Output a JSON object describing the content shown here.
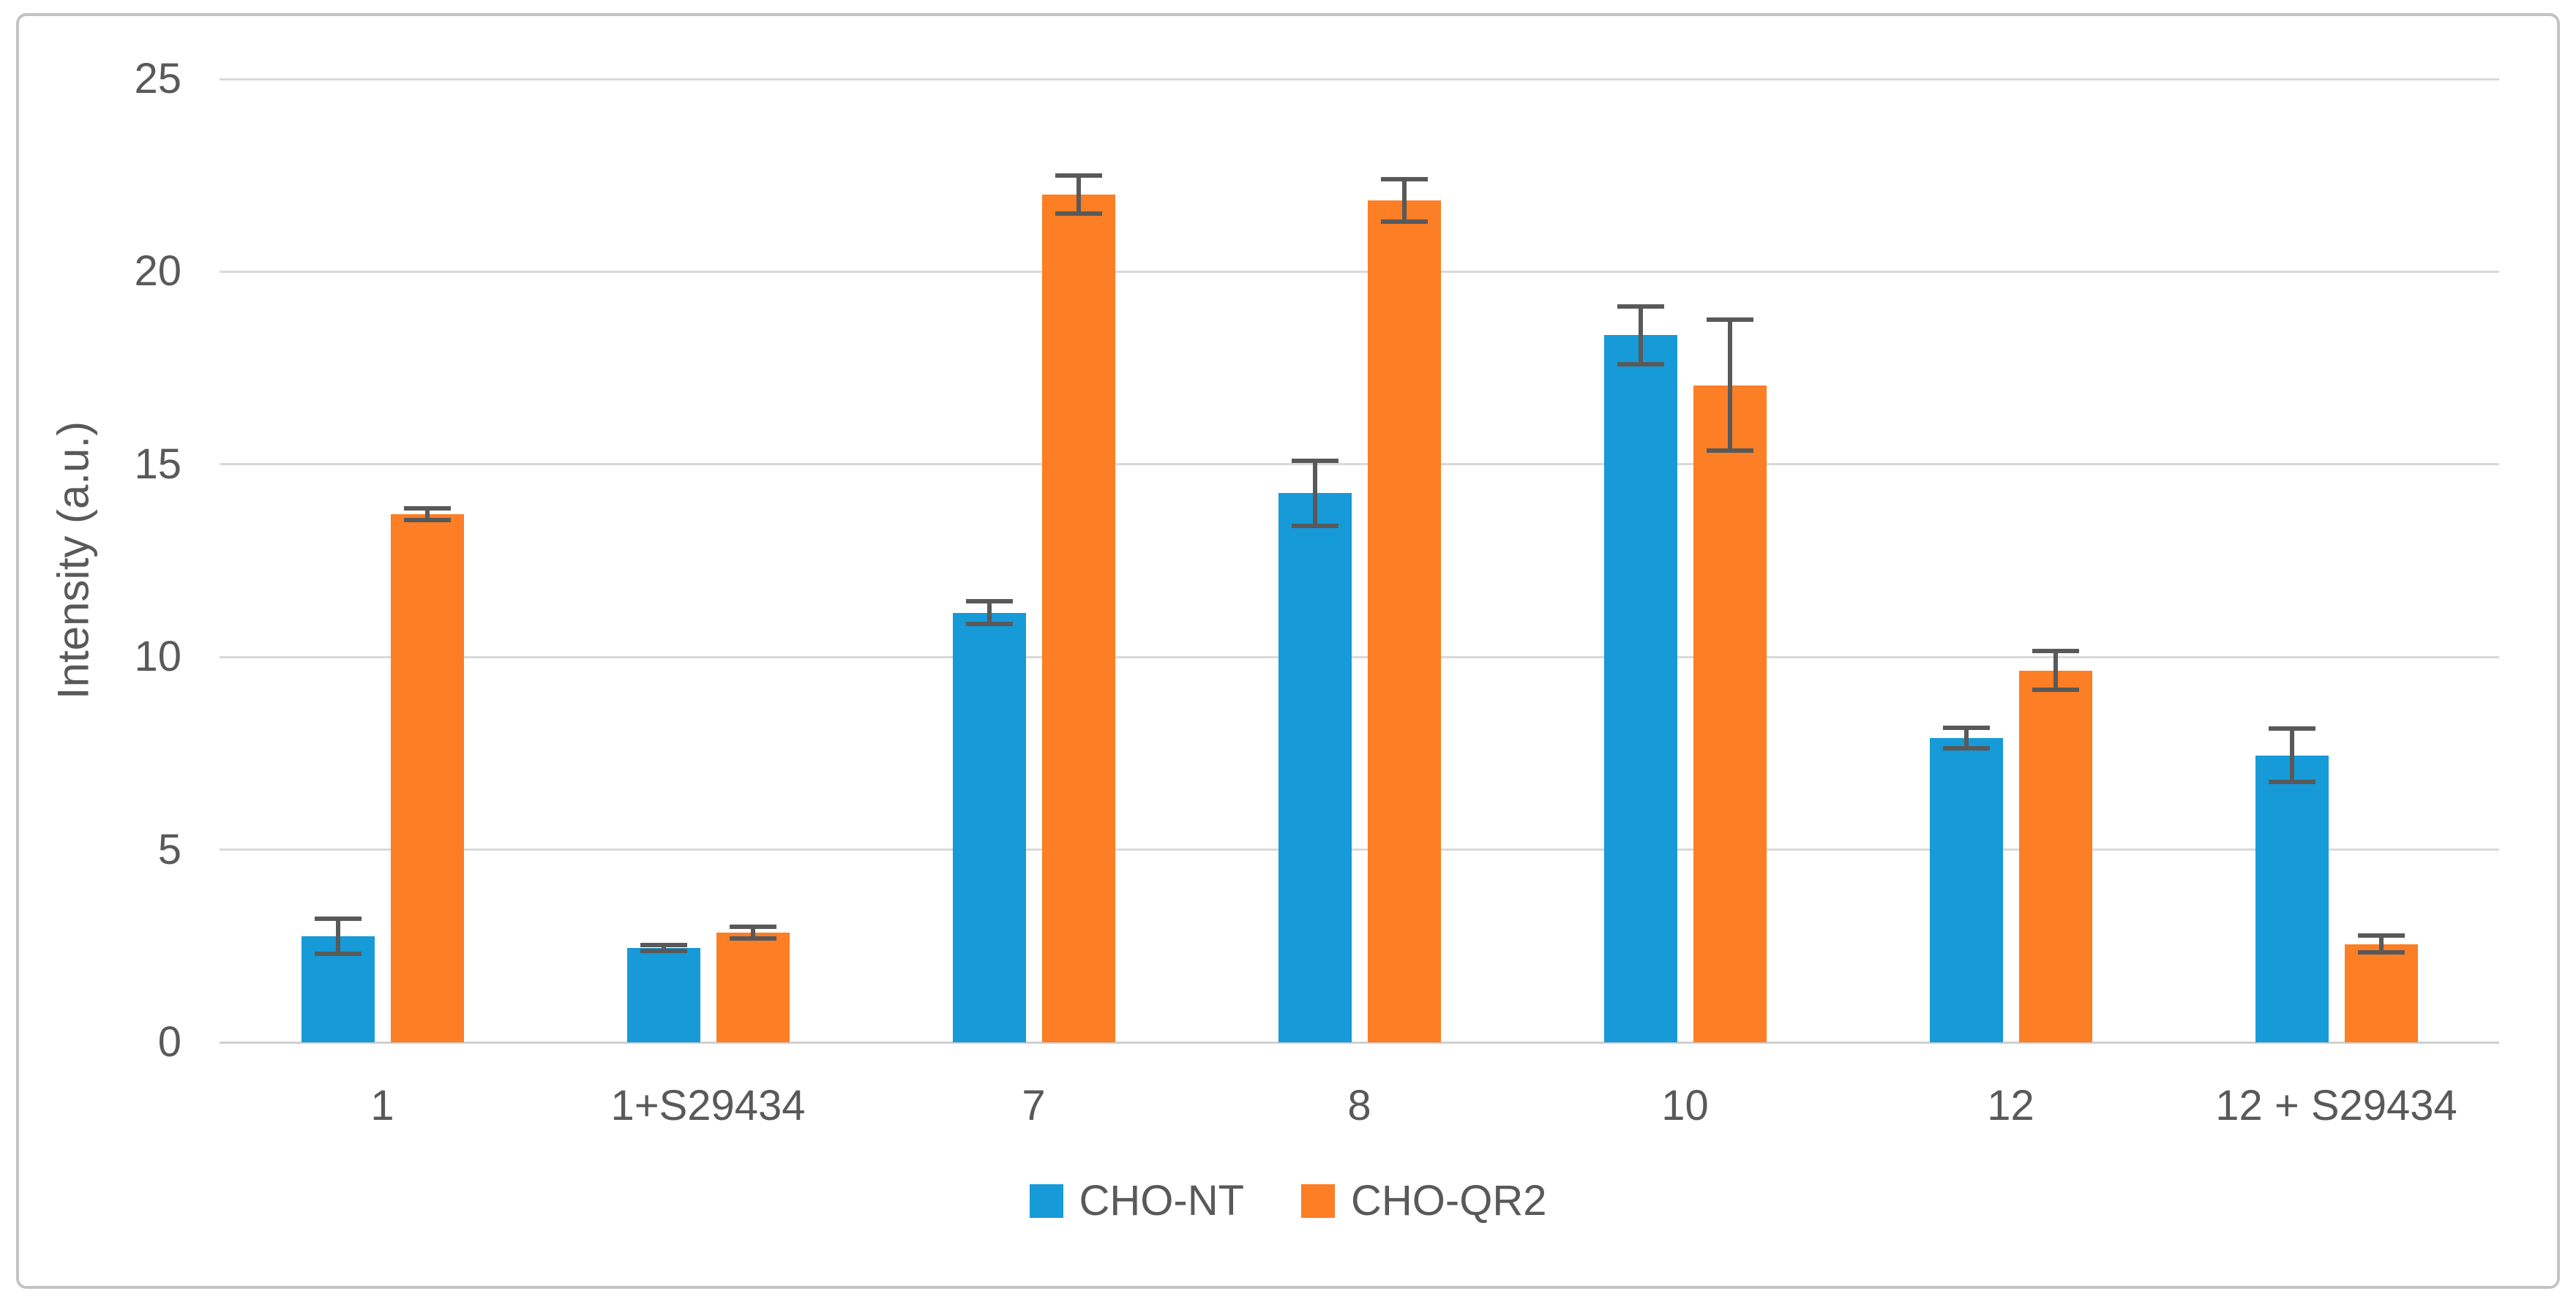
{
  "figure": {
    "background": "#ffffff",
    "border_color": "#c3c3c3"
  },
  "styles": {
    "text_color": "#595959",
    "gridline_color": "#d9d9d9",
    "axis_line_color": "#d0d0d0",
    "error_bar_color": "#595959"
  },
  "chart_data": {
    "type": "bar",
    "title": "",
    "xlabel": "",
    "ylabel": "Intensity (a.u.)",
    "ylim": [
      0,
      25
    ],
    "yticks": [
      0,
      5,
      10,
      15,
      20,
      25
    ],
    "grid": true,
    "legend_position": "bottom",
    "categories": [
      "1",
      "1+S29434",
      "7",
      "8",
      "10",
      "12",
      "12 + S29434"
    ],
    "series": [
      {
        "name": "CHO-NT",
        "color": "#169AD8",
        "values": [
          2.75,
          2.45,
          11.15,
          14.25,
          18.35,
          7.9,
          7.45
        ],
        "errors": [
          0.45,
          0.07,
          0.3,
          0.85,
          0.75,
          0.27,
          0.7
        ]
      },
      {
        "name": "CHO-QR2",
        "color": "#FC7E25",
        "values": [
          13.7,
          2.85,
          22.0,
          21.85,
          17.05,
          9.65,
          2.55
        ],
        "errors": [
          0.15,
          0.15,
          0.5,
          0.55,
          1.7,
          0.5,
          0.22
        ]
      }
    ]
  }
}
